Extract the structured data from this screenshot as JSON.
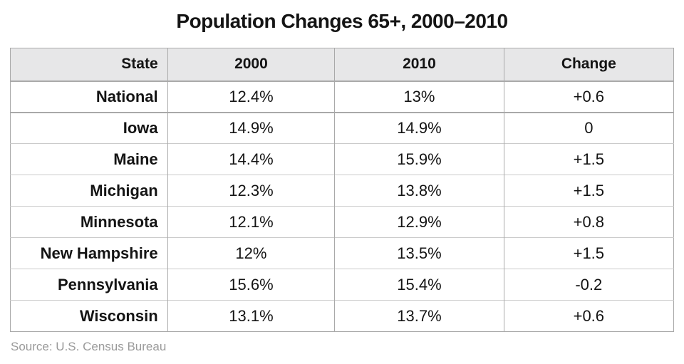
{
  "title": "Population Changes 65+, 2000–2010",
  "source": "Source: U.S. Census Bureau",
  "colors": {
    "header_bg": "#e7e7e8",
    "border_strong": "#a9a9a9",
    "border_light": "#cbcbcb",
    "text": "#141414",
    "source_text": "#9a9a9a",
    "page_bg": "#ffffff"
  },
  "chart_data": {
    "type": "table",
    "title": "Population Changes 65+, 2000–2010",
    "columns": [
      "State",
      "2000",
      "2010",
      "Change"
    ],
    "rows": [
      [
        "National",
        "12.4%",
        "13%",
        "+0.6"
      ],
      [
        "Iowa",
        "14.9%",
        "14.9%",
        "0"
      ],
      [
        "Maine",
        "14.4%",
        "15.9%",
        "+1.5"
      ],
      [
        "Michigan",
        "12.3%",
        "13.8%",
        "+1.5"
      ],
      [
        "Minnesota",
        "12.1%",
        "12.9%",
        "+0.8"
      ],
      [
        "New Hampshire",
        "12%",
        "13.5%",
        "+1.5"
      ],
      [
        "Pennsylvania",
        "15.6%",
        "15.4%",
        "-0.2"
      ],
      [
        "Wisconsin",
        "13.1%",
        "13.7%",
        "+0.6"
      ]
    ],
    "source": "Source: U.S. Census Bureau",
    "layout": {
      "header_background": "#e7e7e8",
      "state_column_align": "right",
      "value_columns_align": "center",
      "summary_row_index": 0
    }
  }
}
